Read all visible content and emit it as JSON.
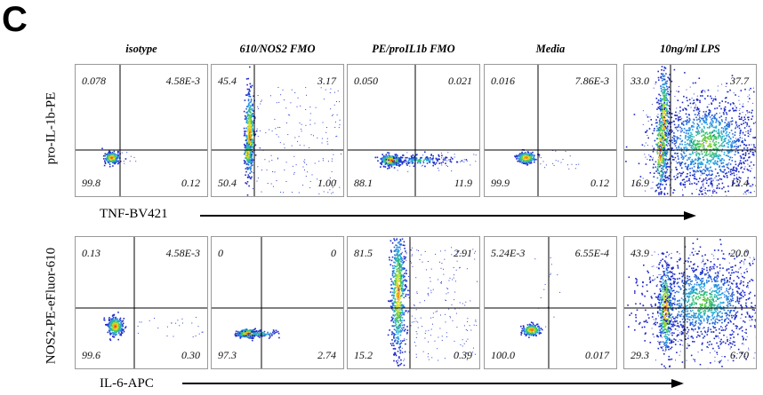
{
  "figure": {
    "panel_letter": "C",
    "columns": [
      "isotype",
      "610/NOS2 FMO",
      "PE/proIL1b FMO",
      "Media",
      "10ng/ml LPS"
    ],
    "rows": [
      {
        "ylabel": "pro-IL-1b-PE",
        "xlabel": "TNF-BV421",
        "plots": [
          {
            "tl": "0.078",
            "tr": "4.58E-3",
            "bl": "99.8",
            "br": "0.12"
          },
          {
            "tl": "45.4",
            "tr": "3.17",
            "bl": "50.4",
            "br": "1.00"
          },
          {
            "tl": "0.050",
            "tr": "0.021",
            "bl": "88.1",
            "br": "11.9"
          },
          {
            "tl": "0.016",
            "tr": "7.86E-3",
            "bl": "99.9",
            "br": "0.12"
          },
          {
            "tl": "33.0",
            "tr": "37.7",
            "bl": "16.9",
            "br": "12.4"
          }
        ]
      },
      {
        "ylabel": "NOS2-PE-eFluor-610",
        "xlabel": "IL-6-APC",
        "plots": [
          {
            "tl": "0.13",
            "tr": "4.58E-3",
            "bl": "99.6",
            "br": "0.30"
          },
          {
            "tl": "0",
            "tr": "0",
            "bl": "97.3",
            "br": "2.74"
          },
          {
            "tl": "81.5",
            "tr": "2.91",
            "bl": "15.2",
            "br": "0.39"
          },
          {
            "tl": "5.24E-3",
            "tr": "6.55E-4",
            "bl": "100.0",
            "br": "0.017"
          },
          {
            "tl": "43.9",
            "tr": "20.0",
            "bl": "29.3",
            "br": "6.70"
          }
        ]
      }
    ]
  }
}
